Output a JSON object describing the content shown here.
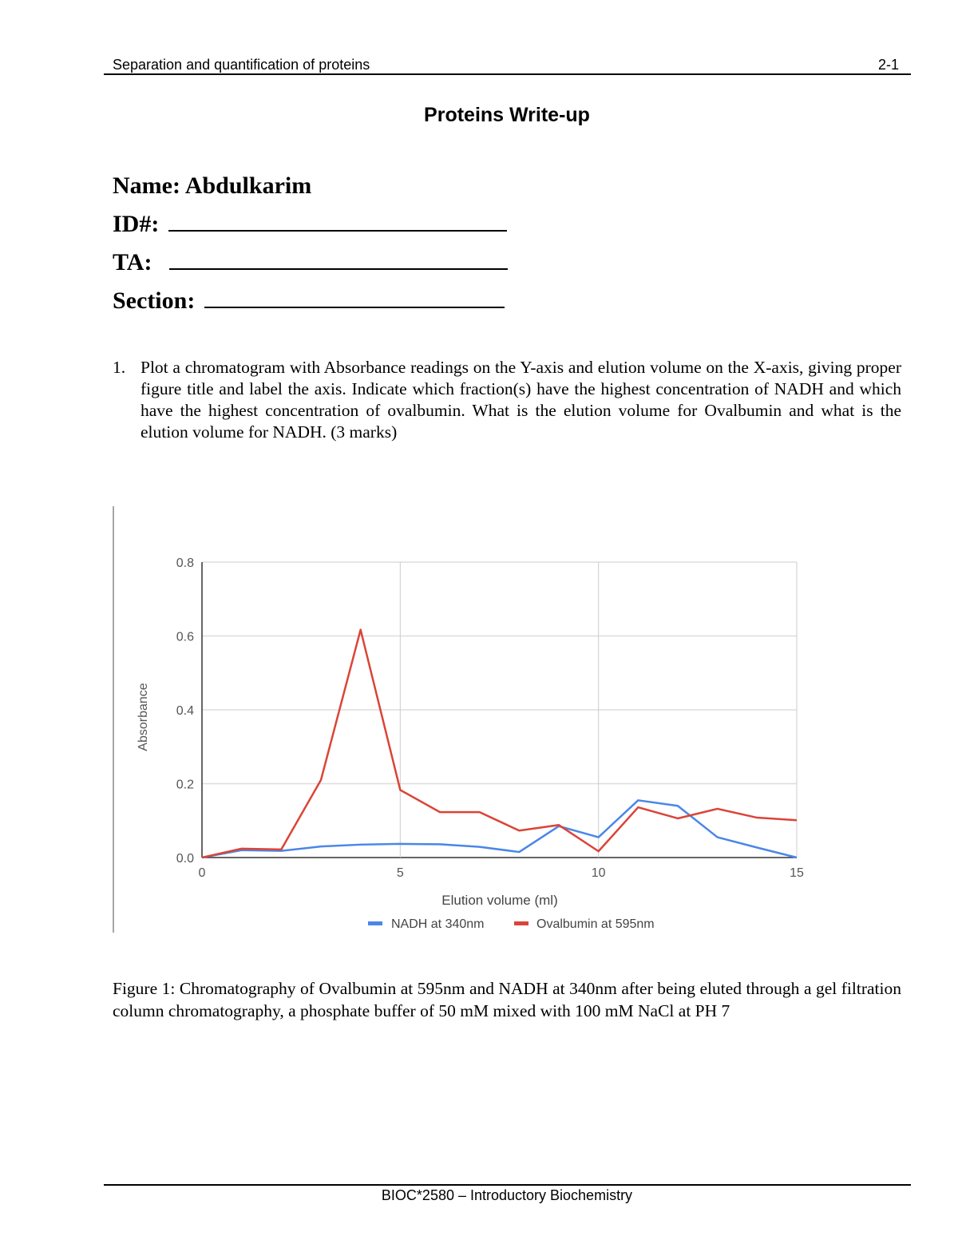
{
  "header": {
    "left": "Separation and quantification of proteins",
    "right": "2-1"
  },
  "title": "Proteins Write-up",
  "fields": [
    {
      "label": "Name:",
      "value": "Abdulkarim"
    },
    {
      "label": "ID#:",
      "value": ""
    },
    {
      "label": "TA:",
      "value": ""
    },
    {
      "label": "Section:",
      "value": ""
    }
  ],
  "question": {
    "number": "1.",
    "text": "Plot a chromatogram with Absorbance readings on the Y-axis and elution volume on the X-axis, giving proper figure title and label the axis.  Indicate which fraction(s) have the highest concentration of NADH and which have the highest concentration of ovalbumin. What is the elution volume for Ovalbumin and what is the elution volume for NADH. (3 marks)"
  },
  "chart_data": {
    "type": "line",
    "title": "",
    "xlabel": "Elution volume (ml)",
    "ylabel": "Absorbance",
    "xlim": [
      0,
      15
    ],
    "ylim": [
      0,
      0.8
    ],
    "x_ticks": [
      "0",
      "5",
      "10",
      "15"
    ],
    "y_ticks": [
      "0.0",
      "0.2",
      "0.4",
      "0.6",
      "0.8"
    ],
    "grid": true,
    "legend_position": "bottom",
    "x": [
      0,
      1,
      2,
      3,
      4,
      5,
      6,
      7,
      8,
      9,
      10,
      11,
      12,
      13,
      14,
      15
    ],
    "series": [
      {
        "name": "NADH at 340nm",
        "color": "#4a86e8",
        "values": [
          0,
          0.02,
          0.018,
          0.03,
          0.035,
          0.037,
          0.036,
          0.029,
          0.015,
          0.085,
          0.055,
          0.155,
          0.14,
          0.055,
          0.027,
          0
        ]
      },
      {
        "name": "Ovalbumin at 595nm",
        "color": "#db4437",
        "values": [
          0,
          0.024,
          0.022,
          0.21,
          0.617,
          0.183,
          0.123,
          0.123,
          0.073,
          0.088,
          0.017,
          0.136,
          0.106,
          0.132,
          0.108,
          0.101
        ]
      }
    ]
  },
  "caption": "Figure 1: Chromatography of Ovalbumin at 595nm and NADH at 340nm after being eluted through a gel filtration column chromatography, a phosphate buffer of 50 mM mixed with 100 mM NaCl at PH 7",
  "footer": "BIOC*2580 – Introductory Biochemistry"
}
